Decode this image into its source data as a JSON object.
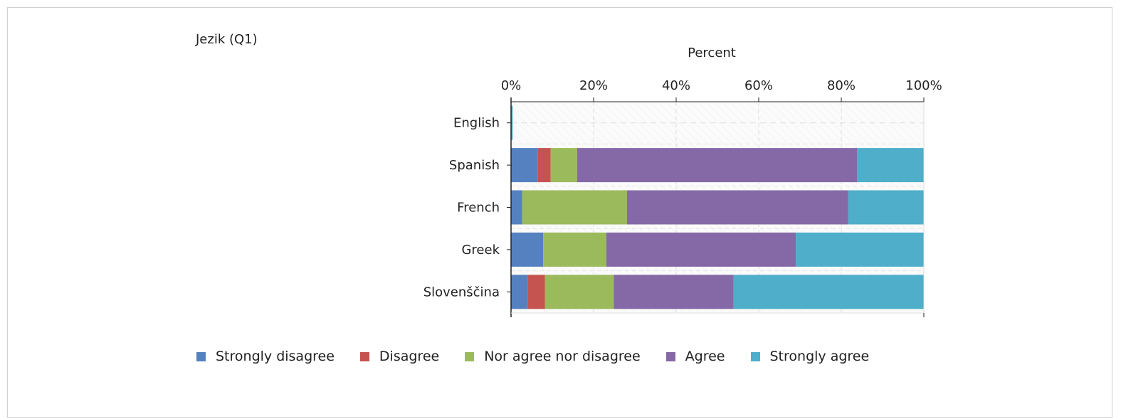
{
  "chart_data": {
    "type": "bar",
    "orientation": "horizontal",
    "stacked": true,
    "title": "Jezik (Q1)",
    "xlabel": "Percent",
    "xlim": [
      0,
      100
    ],
    "x_ticks": [
      "0%",
      "20%",
      "40%",
      "60%",
      "80%",
      "100%"
    ],
    "grid": true,
    "legend_position": "bottom",
    "categories": [
      "English",
      "Spanish",
      "French",
      "Greek",
      "Slovenščina"
    ],
    "series": [
      {
        "name": "Strongly disagree",
        "color": "#5581c1",
        "values": [
          0,
          6.5,
          2.7,
          7.8,
          4.0
        ]
      },
      {
        "name": "Disagree",
        "color": "#c55450",
        "values": [
          0,
          3.1,
          0,
          0,
          4.2
        ]
      },
      {
        "name": "Nor agree nor disagree",
        "color": "#9bba5c",
        "values": [
          0,
          6.4,
          25.4,
          15.3,
          16.7
        ]
      },
      {
        "name": "Agree",
        "color": "#8569a7",
        "values": [
          0,
          67.8,
          53.6,
          45.9,
          29.0
        ]
      },
      {
        "name": "Strongly agree",
        "color": "#4faec9",
        "values": [
          0.4,
          16.2,
          18.3,
          31.0,
          46.1
        ]
      }
    ]
  }
}
